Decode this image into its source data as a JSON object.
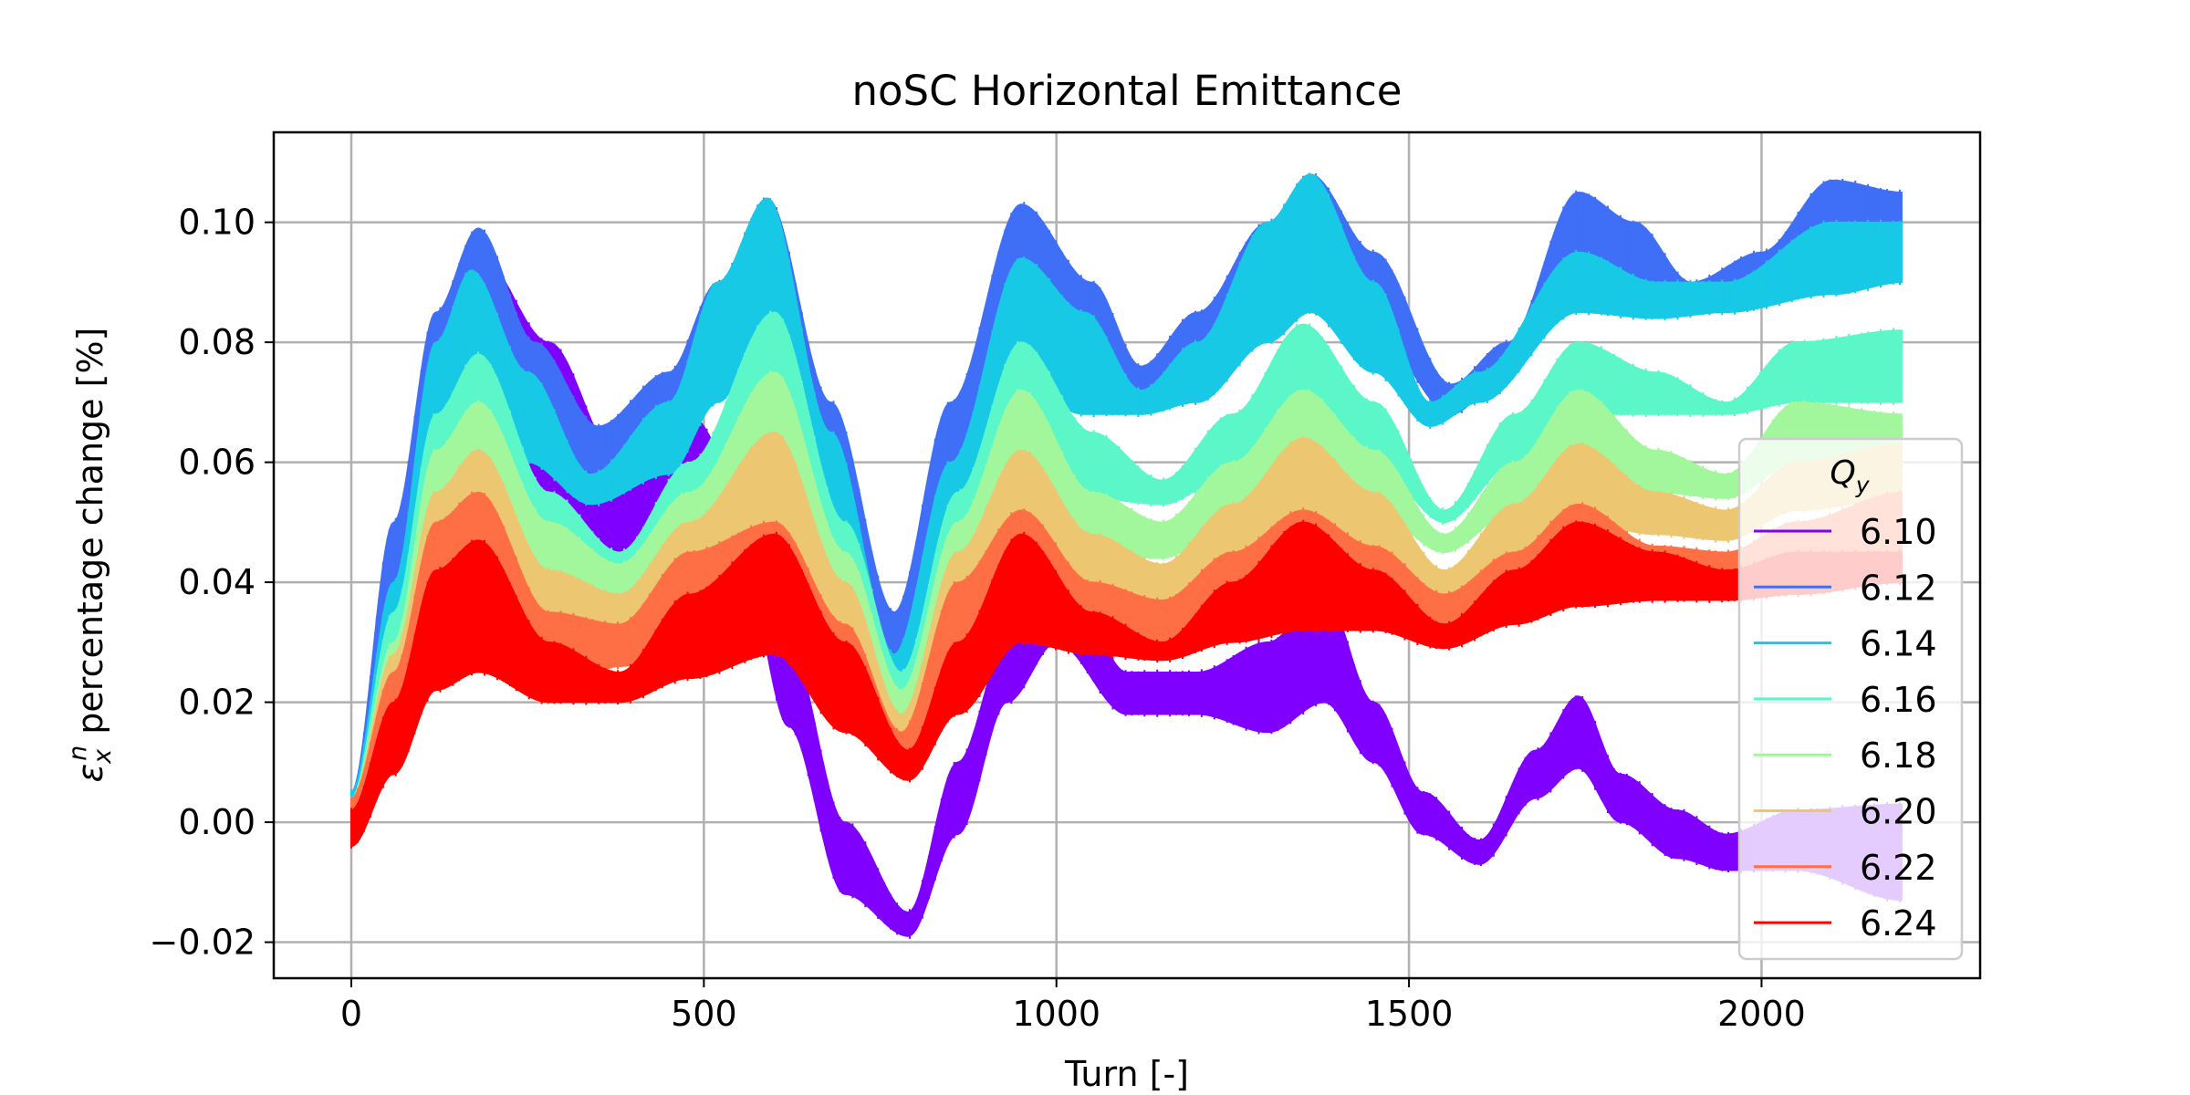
{
  "chart_data": {
    "type": "line",
    "title": "noSC Horizontal Emittance",
    "xlabel": "Turn [-]",
    "ylabel": "percentage change [%]",
    "ylabel_symbol": "ε",
    "ylabel_sub": "x",
    "ylabel_sup": "n",
    "xlim": [
      -110,
      2310
    ],
    "ylim": [
      -0.026,
      0.115
    ],
    "xticks": [
      0,
      500,
      1000,
      1500,
      2000
    ],
    "xtick_labels": [
      "0",
      "500",
      "1000",
      "1500",
      "2000"
    ],
    "yticks": [
      -0.02,
      0.0,
      0.02,
      0.04,
      0.06,
      0.08,
      0.1
    ],
    "ytick_labels": [
      "−0.02",
      "0.00",
      "0.02",
      "0.04",
      "0.06",
      "0.08",
      "0.10"
    ],
    "grid": true,
    "legend": {
      "title_symbol": "Q",
      "title_sub": "y",
      "placement": "center-right"
    },
    "series": [
      {
        "name": "6.10",
        "color": "#7f00ff",
        "x": [
          0,
          50,
          100,
          180,
          280,
          380,
          480,
          560,
          620,
          700,
          790,
          860,
          930,
          1000,
          1100,
          1200,
          1300,
          1380,
          1450,
          1520,
          1600,
          1680,
          1740,
          1800,
          1880,
          1950,
          2050,
          2200
        ],
        "upper": [
          0.005,
          0.03,
          0.06,
          0.095,
          0.08,
          0.06,
          0.068,
          0.055,
          0.03,
          0.0,
          -0.015,
          0.01,
          0.03,
          0.045,
          0.025,
          0.025,
          0.03,
          0.038,
          0.02,
          0.005,
          -0.003,
          0.012,
          0.021,
          0.008,
          0.002,
          -0.002,
          0.002,
          0.003
        ],
        "lower": [
          -0.004,
          0.01,
          0.035,
          0.065,
          0.052,
          0.044,
          0.05,
          0.04,
          0.016,
          -0.012,
          -0.019,
          -0.002,
          0.02,
          0.03,
          0.018,
          0.018,
          0.015,
          0.02,
          0.01,
          -0.002,
          -0.007,
          0.004,
          0.009,
          0.0,
          -0.006,
          -0.008,
          -0.008,
          -0.013
        ]
      },
      {
        "name": "6.12",
        "color": "#3f6ff7",
        "x": [
          0,
          60,
          120,
          180,
          260,
          350,
          450,
          520,
          590,
          680,
          770,
          850,
          950,
          1050,
          1120,
          1200,
          1300,
          1360,
          1450,
          1560,
          1640,
          1740,
          1820,
          1900,
          2000,
          2100,
          2200
        ],
        "upper": [
          0.005,
          0.05,
          0.085,
          0.099,
          0.08,
          0.066,
          0.075,
          0.09,
          0.104,
          0.07,
          0.035,
          0.07,
          0.103,
          0.09,
          0.076,
          0.085,
          0.1,
          0.108,
          0.095,
          0.073,
          0.08,
          0.105,
          0.1,
          0.09,
          0.095,
          0.107,
          0.105
        ],
        "lower": [
          -0.002,
          0.03,
          0.065,
          0.078,
          0.065,
          0.058,
          0.06,
          0.075,
          0.085,
          0.05,
          0.02,
          0.05,
          0.08,
          0.075,
          0.07,
          0.075,
          0.085,
          0.09,
          0.082,
          0.068,
          0.075,
          0.092,
          0.09,
          0.088,
          0.09,
          0.095,
          0.09
        ]
      },
      {
        "name": "6.14",
        "color": "#17c9e5",
        "x": [
          0,
          60,
          120,
          170,
          250,
          340,
          450,
          520,
          590,
          680,
          770,
          850,
          950,
          1040,
          1120,
          1200,
          1300,
          1360,
          1450,
          1530,
          1600,
          1740,
          1850,
          1950,
          2100,
          2200
        ],
        "upper": [
          0.005,
          0.04,
          0.08,
          0.092,
          0.075,
          0.058,
          0.07,
          0.09,
          0.104,
          0.065,
          0.028,
          0.06,
          0.094,
          0.085,
          0.072,
          0.08,
          0.1,
          0.108,
          0.09,
          0.07,
          0.075,
          0.095,
          0.09,
          0.09,
          0.1,
          0.1
        ],
        "lower": [
          -0.002,
          0.025,
          0.06,
          0.072,
          0.06,
          0.053,
          0.058,
          0.07,
          0.082,
          0.045,
          0.015,
          0.045,
          0.072,
          0.068,
          0.068,
          0.07,
          0.08,
          0.085,
          0.075,
          0.066,
          0.07,
          0.085,
          0.084,
          0.085,
          0.088,
          0.09
        ]
      },
      {
        "name": "6.16",
        "color": "#5cf7c8",
        "x": [
          0,
          60,
          120,
          180,
          280,
          380,
          480,
          600,
          700,
          780,
          860,
          950,
          1050,
          1150,
          1250,
          1350,
          1450,
          1550,
          1650,
          1740,
          1850,
          1950,
          2050,
          2200
        ],
        "upper": [
          0.004,
          0.035,
          0.068,
          0.078,
          0.055,
          0.045,
          0.06,
          0.085,
          0.05,
          0.025,
          0.055,
          0.08,
          0.065,
          0.057,
          0.068,
          0.083,
          0.07,
          0.052,
          0.068,
          0.08,
          0.075,
          0.07,
          0.08,
          0.082
        ],
        "lower": [
          -0.002,
          0.02,
          0.048,
          0.06,
          0.045,
          0.04,
          0.05,
          0.065,
          0.035,
          0.015,
          0.04,
          0.058,
          0.054,
          0.053,
          0.058,
          0.065,
          0.06,
          0.05,
          0.06,
          0.068,
          0.068,
          0.068,
          0.07,
          0.07
        ]
      },
      {
        "name": "6.18",
        "color": "#a2f79c",
        "x": [
          0,
          60,
          120,
          180,
          280,
          380,
          480,
          600,
          700,
          780,
          860,
          950,
          1050,
          1150,
          1250,
          1350,
          1450,
          1550,
          1650,
          1740,
          1850,
          1950,
          2050,
          2200
        ],
        "upper": [
          0.004,
          0.03,
          0.062,
          0.07,
          0.05,
          0.043,
          0.055,
          0.075,
          0.045,
          0.022,
          0.05,
          0.072,
          0.055,
          0.05,
          0.06,
          0.072,
          0.062,
          0.048,
          0.06,
          0.072,
          0.062,
          0.058,
          0.07,
          0.068
        ],
        "lower": [
          -0.002,
          0.018,
          0.042,
          0.052,
          0.04,
          0.036,
          0.045,
          0.058,
          0.03,
          0.013,
          0.035,
          0.05,
          0.045,
          0.044,
          0.05,
          0.056,
          0.052,
          0.045,
          0.052,
          0.058,
          0.055,
          0.054,
          0.06,
          0.06
        ]
      },
      {
        "name": "6.20",
        "color": "#edc672",
        "x": [
          0,
          60,
          120,
          180,
          280,
          380,
          480,
          600,
          700,
          780,
          860,
          950,
          1050,
          1150,
          1250,
          1350,
          1450,
          1550,
          1650,
          1740,
          1850,
          1950,
          2050,
          2200
        ],
        "upper": [
          0.004,
          0.028,
          0.055,
          0.062,
          0.042,
          0.038,
          0.05,
          0.065,
          0.04,
          0.018,
          0.045,
          0.062,
          0.048,
          0.043,
          0.053,
          0.064,
          0.055,
          0.042,
          0.053,
          0.063,
          0.055,
          0.052,
          0.06,
          0.063
        ],
        "lower": [
          -0.002,
          0.015,
          0.035,
          0.045,
          0.03,
          0.032,
          0.036,
          0.05,
          0.025,
          0.012,
          0.03,
          0.043,
          0.038,
          0.037,
          0.042,
          0.048,
          0.044,
          0.038,
          0.045,
          0.05,
          0.048,
          0.047,
          0.052,
          0.054
        ]
      },
      {
        "name": "6.22",
        "color": "#ff6f45",
        "x": [
          0,
          60,
          120,
          180,
          280,
          380,
          480,
          600,
          700,
          780,
          860,
          950,
          1050,
          1150,
          1250,
          1350,
          1450,
          1550,
          1650,
          1740,
          1850,
          1950,
          2050,
          2200
        ],
        "upper": [
          0.004,
          0.025,
          0.05,
          0.055,
          0.035,
          0.033,
          0.045,
          0.05,
          0.033,
          0.015,
          0.04,
          0.052,
          0.04,
          0.037,
          0.045,
          0.052,
          0.046,
          0.038,
          0.045,
          0.053,
          0.046,
          0.045,
          0.05,
          0.055
        ],
        "lower": [
          -0.002,
          0.01,
          0.028,
          0.03,
          0.02,
          0.026,
          0.028,
          0.035,
          0.018,
          0.01,
          0.025,
          0.033,
          0.03,
          0.029,
          0.033,
          0.036,
          0.035,
          0.032,
          0.036,
          0.04,
          0.038,
          0.038,
          0.042,
          0.045
        ]
      },
      {
        "name": "6.24",
        "color": "#ff0000",
        "x": [
          0,
          60,
          120,
          180,
          280,
          380,
          480,
          600,
          700,
          790,
          860,
          950,
          1050,
          1150,
          1250,
          1350,
          1450,
          1550,
          1650,
          1740,
          1850,
          1950,
          2050,
          2200
        ],
        "upper": [
          0.002,
          0.02,
          0.042,
          0.047,
          0.03,
          0.025,
          0.038,
          0.048,
          0.03,
          0.012,
          0.03,
          0.048,
          0.035,
          0.03,
          0.04,
          0.05,
          0.042,
          0.033,
          0.042,
          0.05,
          0.045,
          0.042,
          0.045,
          0.045
        ],
        "lower": [
          -0.004,
          0.008,
          0.022,
          0.025,
          0.02,
          0.02,
          0.024,
          0.028,
          0.015,
          0.007,
          0.018,
          0.03,
          0.028,
          0.027,
          0.03,
          0.032,
          0.032,
          0.029,
          0.033,
          0.036,
          0.037,
          0.037,
          0.038,
          0.04
        ]
      }
    ]
  }
}
